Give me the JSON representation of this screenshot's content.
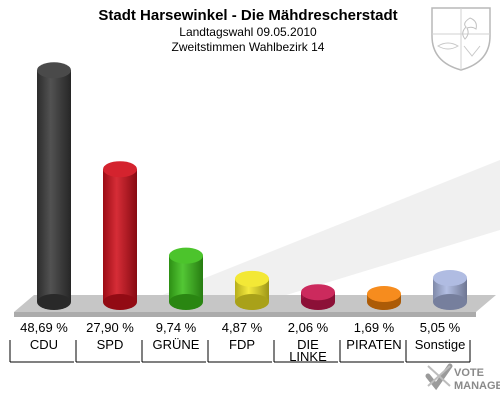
{
  "chart_data": {
    "type": "bar",
    "title": "Stadt Harsewinkel - Die Mähdrescherstadt",
    "subtitle_1": "Landtagswahl 09.05.2010",
    "subtitle_2": "Zweitstimmen Wahlbezirk 14",
    "categories": [
      {
        "label": [
          "CDU"
        ],
        "value_label": "48,69 %",
        "color": "#3a3a3a"
      },
      {
        "label": [
          "SPD"
        ],
        "value_label": "27,90 %",
        "color": "#d0101c"
      },
      {
        "label": [
          "GRÜNE"
        ],
        "value_label": "9,74 %",
        "color": "#3cbf1a"
      },
      {
        "label": [
          "FDP"
        ],
        "value_label": "4,87 %",
        "color": "#f2e624"
      },
      {
        "label": [
          "DIE",
          "LINKE"
        ],
        "value_label": "2,06 %",
        "color": "#c8174f"
      },
      {
        "label": [
          "PIRATEN"
        ],
        "value_label": "1,69 %",
        "color": "#f5820a"
      },
      {
        "label": [
          "Sonstige"
        ],
        "value_label": "5,05 %",
        "color": "#a9b6e0"
      }
    ],
    "values": [
      48.69,
      27.9,
      9.74,
      4.87,
      2.06,
      1.69,
      5.05
    ],
    "ylim": [
      0,
      50
    ],
    "grid": false,
    "legend": "none"
  },
  "watermark": {
    "line1": "VOTE",
    "line2": "MANAGER"
  },
  "colors": {
    "floor_top": "#c4c4c4",
    "floor_front": "#a8a8a8",
    "background": "#ffffff"
  }
}
